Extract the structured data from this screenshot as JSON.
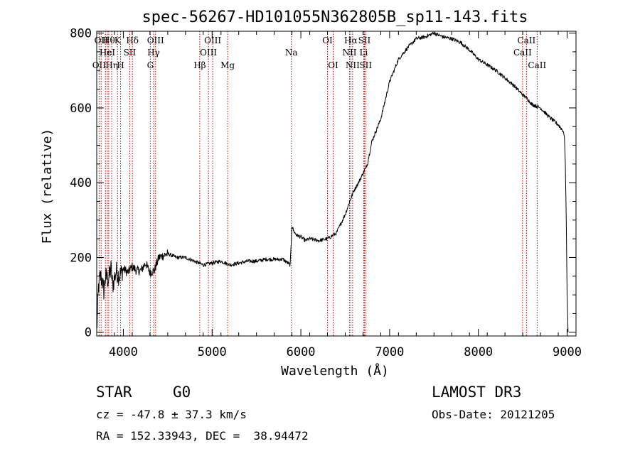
{
  "chart_data": {
    "type": "line",
    "title": "spec-56267-HD101055N362805B_sp11-143.fits",
    "xlabel": "Wavelength (Å)",
    "ylabel": "Flux (relative)",
    "xlim": [
      3700,
      9100
    ],
    "ylim": [
      -10,
      805
    ],
    "xticks": [
      4000,
      5000,
      6000,
      7000,
      8000,
      9000
    ],
    "yticks": [
      0,
      200,
      400,
      600,
      800
    ],
    "grid": false,
    "series": [
      {
        "name": "spectrum",
        "x": [
          3700,
          3720,
          3740,
          3760,
          3780,
          3800,
          3830,
          3860,
          3880,
          3900,
          3920,
          3950,
          3980,
          4000,
          4050,
          4100,
          4150,
          4200,
          4250,
          4300,
          4350,
          4400,
          4450,
          4500,
          4550,
          4600,
          4700,
          4800,
          4850,
          4900,
          5000,
          5100,
          5200,
          5300,
          5400,
          5500,
          5600,
          5700,
          5800,
          5880,
          5900,
          5920,
          5950,
          6000,
          6050,
          6100,
          6200,
          6300,
          6400,
          6450,
          6500,
          6550,
          6600,
          6650,
          6700,
          6750,
          6800,
          6850,
          6900,
          6950,
          7000,
          7050,
          7100,
          7150,
          7200,
          7300,
          7400,
          7500,
          7600,
          7700,
          7800,
          7900,
          8000,
          8100,
          8200,
          8300,
          8400,
          8500,
          8550,
          8600,
          8700,
          8800,
          8900,
          8950,
          8960,
          8970,
          8980,
          8990,
          9000,
          9010
        ],
        "values": [
          0,
          120,
          150,
          140,
          110,
          150,
          140,
          170,
          125,
          145,
          165,
          150,
          160,
          170,
          160,
          175,
          165,
          165,
          185,
          160,
          165,
          200,
          205,
          210,
          205,
          200,
          200,
          190,
          185,
          180,
          185,
          190,
          180,
          185,
          190,
          190,
          195,
          195,
          195,
          180,
          285,
          270,
          260,
          255,
          245,
          250,
          245,
          250,
          265,
          290,
          315,
          350,
          380,
          400,
          425,
          450,
          510,
          540,
          570,
          620,
          670,
          700,
          730,
          745,
          760,
          785,
          790,
          800,
          790,
          785,
          775,
          755,
          730,
          715,
          700,
          680,
          660,
          635,
          625,
          610,
          600,
          575,
          555,
          540,
          535,
          520,
          450,
          300,
          100,
          0
        ]
      }
    ],
    "lines": [
      {
        "wl": 3727,
        "row": 3,
        "label": "OII"
      },
      {
        "wl": 3750,
        "row": 1,
        "label": "OII"
      },
      {
        "wl": 3798,
        "row": 2,
        "label": "Hε"
      },
      {
        "wl": 3820,
        "row": 2,
        "label": "HeI"
      },
      {
        "wl": 3835,
        "row": 1,
        "label": "Hθ"
      },
      {
        "wl": 3869,
        "row": 3,
        "label": "Hη"
      },
      {
        "wl": 3934,
        "row": 1,
        "label": "K"
      },
      {
        "wl": 3969,
        "row": 3,
        "label": "H"
      },
      {
        "wl": 4072,
        "row": 2,
        "label": "SII"
      },
      {
        "wl": 4102,
        "row": 1,
        "label": "Hδ"
      },
      {
        "wl": 4304,
        "row": 3,
        "label": "G"
      },
      {
        "wl": 4341,
        "row": 2,
        "label": "Hγ"
      },
      {
        "wl": 4363,
        "row": 1,
        "label": "OIII"
      },
      {
        "wl": 4861,
        "row": 3,
        "label": "Hβ"
      },
      {
        "wl": 4959,
        "row": 2,
        "label": "OIII"
      },
      {
        "wl": 5007,
        "row": 1,
        "label": "OIII"
      },
      {
        "wl": 5175,
        "row": 3,
        "label": "Mg"
      },
      {
        "wl": 5893,
        "row": 2,
        "label": "Na"
      },
      {
        "wl": 6300,
        "row": 1,
        "label": "OI"
      },
      {
        "wl": 6364,
        "row": 3,
        "label": "OI"
      },
      {
        "wl": 6548,
        "row": 2,
        "label": "NII"
      },
      {
        "wl": 6563,
        "row": 1,
        "label": "Hα"
      },
      {
        "wl": 6583,
        "row": 3,
        "label": "NII"
      },
      {
        "wl": 6708,
        "row": 2,
        "label": "Li"
      },
      {
        "wl": 6716,
        "row": 1,
        "label": "SII"
      },
      {
        "wl": 6731,
        "row": 3,
        "label": "SII"
      },
      {
        "wl": 8498,
        "row": 2,
        "label": "CaII"
      },
      {
        "wl": 8542,
        "row": 1,
        "label": "CaII"
      },
      {
        "wl": 8662,
        "row": 3,
        "label": "CaII"
      }
    ]
  },
  "info": {
    "class_label": "STAR",
    "subclass": "G0",
    "survey": "LAMOST DR3",
    "cz": "cz = -47.8 ± 37.3 km/s",
    "obs_date": "Obs-Date: 20121205",
    "coords": "RA = 152.33943, DEC =  38.94472"
  },
  "colors": {
    "spectrum": "#000000",
    "line_marker": "#cc0000",
    "axis": "#000000",
    "background": "#ffffff"
  }
}
